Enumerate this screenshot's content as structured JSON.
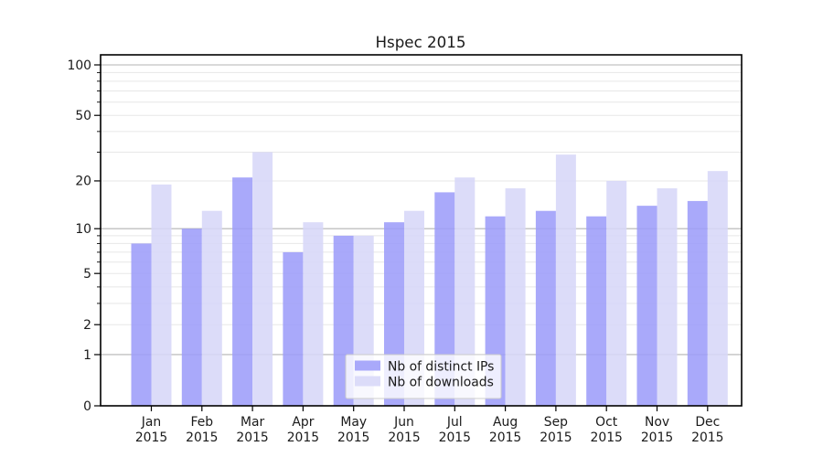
{
  "title": "Hspec 2015",
  "colors": {
    "bar_ips": "#9d9df9",
    "bar_downloads": "#d7d7f8",
    "bar_opacity": 0.88,
    "grid_major": "#b3b3b3",
    "grid_minor": "#e7e7e7",
    "spine": "#000000",
    "text": "#1a1a1a",
    "legend_border": "#cccccc",
    "legend_bg": "#ffffff"
  },
  "legend": {
    "entries": [
      {
        "label": "Nb of distinct IPs",
        "color_key": "bar_ips"
      },
      {
        "label": "Nb of downloads",
        "color_key": "bar_downloads"
      }
    ],
    "position": "lower center"
  },
  "chart_data": {
    "type": "bar",
    "title": "Hspec 2015",
    "categories": [
      "Jan",
      "Feb",
      "Mar",
      "Apr",
      "May",
      "Jun",
      "Jul",
      "Aug",
      "Sep",
      "Oct",
      "Nov",
      "Dec"
    ],
    "year_label": "2015",
    "series": [
      {
        "name": "Nb of distinct IPs",
        "values": [
          8,
          10,
          21,
          7,
          9,
          11,
          17,
          12,
          13,
          12,
          14,
          15
        ]
      },
      {
        "name": "Nb of downloads",
        "values": [
          19,
          13,
          30,
          11,
          9,
          13,
          21,
          18,
          29,
          20,
          18,
          23
        ]
      }
    ],
    "xlabel": "",
    "ylabel": "",
    "y_scale": "log1p",
    "ylim": [
      0,
      115
    ],
    "y_ticks_labeled": [
      0,
      1,
      2,
      5,
      10,
      20,
      50,
      100
    ],
    "y_gridlines_major": [
      1,
      10,
      100
    ],
    "y_gridlines_minor": [
      2,
      3,
      4,
      5,
      6,
      7,
      8,
      9,
      20,
      30,
      40,
      50,
      60,
      70,
      80,
      90
    ],
    "grid": true,
    "legend_position": "lower center"
  }
}
